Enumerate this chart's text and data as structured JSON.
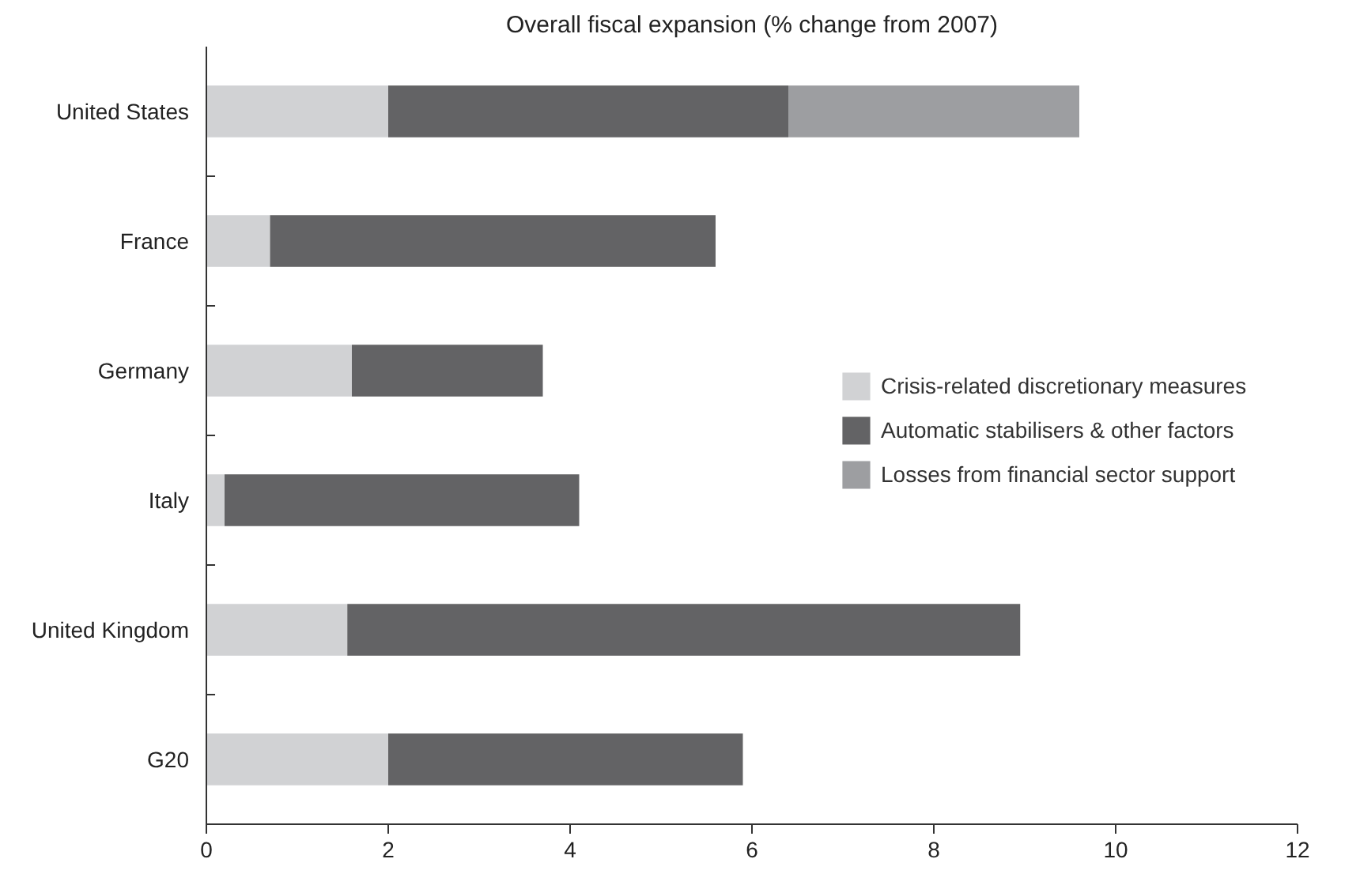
{
  "chart_data": {
    "type": "bar",
    "orientation": "horizontal",
    "stacked": true,
    "title": "Overall fiscal expansion (% change from 2007)",
    "categories": [
      "United States",
      "France",
      "Germany",
      "Italy",
      "United Kingdom",
      "G20"
    ],
    "series": [
      {
        "name": "Crisis-related discretionary measures",
        "color": "#d1d2d4",
        "values": [
          2.0,
          0.7,
          1.6,
          0.2,
          1.55,
          2.0
        ]
      },
      {
        "name": "Automatic stabilisers & other factors",
        "color": "#636365",
        "values": [
          4.4,
          4.9,
          2.1,
          3.9,
          7.4,
          3.9
        ]
      },
      {
        "name": "Losses from financial sector support",
        "color": "#9d9ea1",
        "values": [
          3.2,
          null,
          null,
          null,
          null,
          null
        ]
      }
    ],
    "xlim": [
      0,
      12
    ],
    "xticks": [
      0,
      2,
      4,
      6,
      8,
      10,
      12
    ],
    "grid": false,
    "legend": "right"
  }
}
